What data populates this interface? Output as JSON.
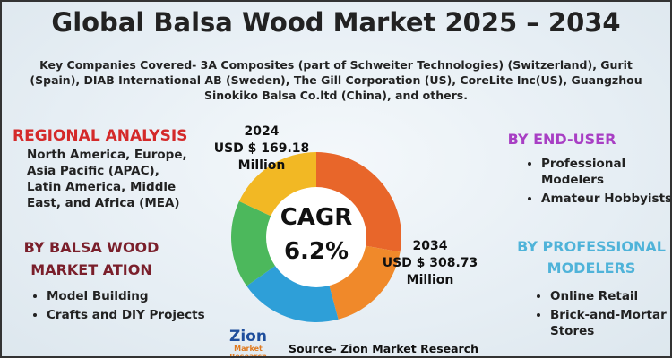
{
  "header": {
    "title": "Global Balsa Wood Market 2025 – 2034",
    "companies": "Key Companies Covered- 3A Composites (part of Schweiter Technologies) (Switzerland), Gurit (Spain), DIAB International AB (Sweden), The Gill Corporation (US), CoreLite Inc(US), Guangzhou Sinokiko Balsa Co.ltd (China), and others."
  },
  "regional": {
    "heading": "REGIONAL ANALYSIS",
    "text": "North America, Europe, Asia Pacific (APAC), Latin America, Middle East, and Africa (MEA)"
  },
  "segmentation": {
    "heading_lines": [
      "BY BALSA WOOD",
      "MARKET ATION"
    ],
    "items": [
      "Model Building",
      "Crafts and DIY Projects"
    ]
  },
  "donut": {
    "start": {
      "year": "2024",
      "value": "USD $ 169.18",
      "unit": "Million"
    },
    "cagr": {
      "label": "CAGR",
      "value": "6.2%"
    },
    "end": {
      "year": "2034",
      "value": "USD $ 308.73",
      "unit": "Million"
    }
  },
  "end_user": {
    "heading": "BY END-USER",
    "items": [
      "Professional Modelers",
      "Amateur Hobbyists"
    ]
  },
  "professional": {
    "heading": "BY PROFESSIONAL MODELERS",
    "items": [
      "Online Retail",
      "Brick-and-Mortar Stores"
    ]
  },
  "footer": {
    "source": "Source- Zion Market Research",
    "logo": "Zion",
    "logo_sub": "Market Research"
  }
}
